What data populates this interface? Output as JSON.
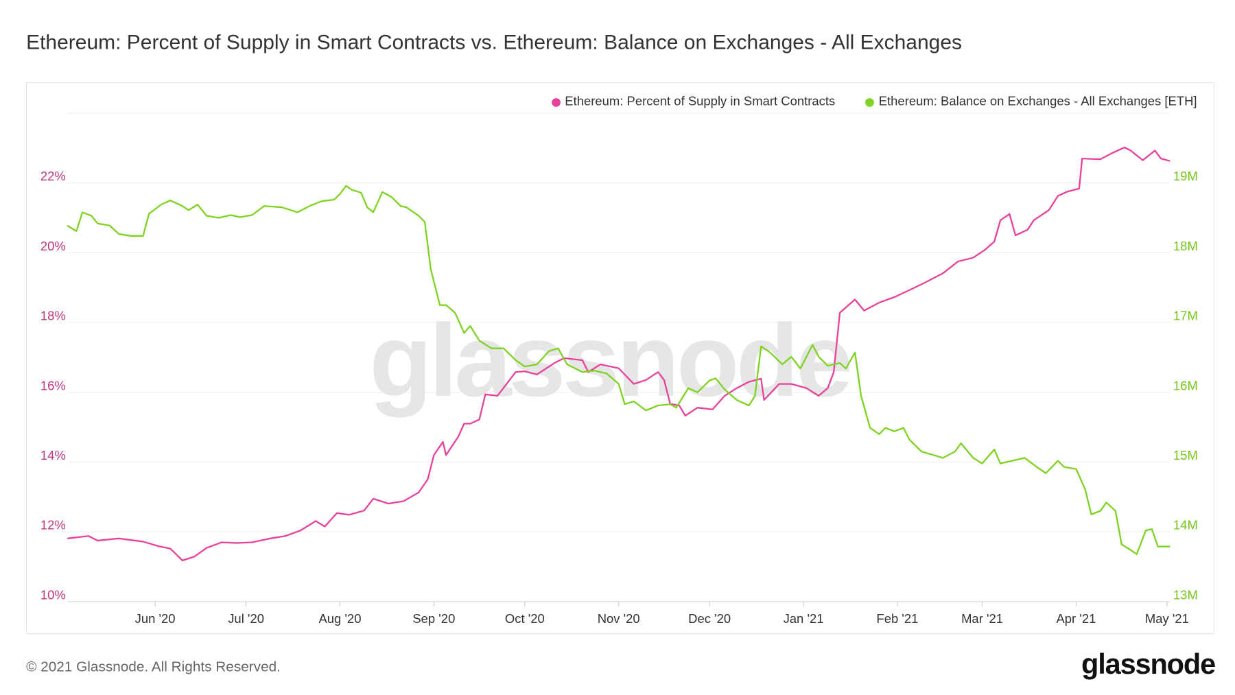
{
  "colors": {
    "pink": "#e8419b",
    "green": "#7ed321",
    "left_axis": "#c2347f",
    "right_axis": "#76c51c"
  },
  "chart_data": {
    "type": "line",
    "title": "Ethereum: Percent of Supply in Smart Contracts vs. Ethereum: Balance on Exchanges - All Exchanges",
    "x_unit": "days since 2020-05-03",
    "x_range": [
      0,
      364
    ],
    "x_ticks": [
      {
        "day": 29,
        "label": "Jun '20"
      },
      {
        "day": 59,
        "label": "Jul '20"
      },
      {
        "day": 90,
        "label": "Aug '20"
      },
      {
        "day": 121,
        "label": "Sep '20"
      },
      {
        "day": 151,
        "label": "Oct '20"
      },
      {
        "day": 182,
        "label": "Nov '20"
      },
      {
        "day": 212,
        "label": "Dec '20"
      },
      {
        "day": 243,
        "label": "Jan '21"
      },
      {
        "day": 274,
        "label": "Feb '21"
      },
      {
        "day": 302,
        "label": "Mar '21"
      },
      {
        "day": 333,
        "label": "Apr '21"
      },
      {
        "day": 363,
        "label": "May '21"
      }
    ],
    "y_left": {
      "range": [
        10,
        24
      ],
      "ticks": [
        {
          "v": 10,
          "label": "10%"
        },
        {
          "v": 12,
          "label": "12%"
        },
        {
          "v": 14,
          "label": "14%"
        },
        {
          "v": 16,
          "label": "16%"
        },
        {
          "v": 18,
          "label": "18%"
        },
        {
          "v": 20,
          "label": "20%"
        },
        {
          "v": 22,
          "label": "22%"
        }
      ]
    },
    "y_right": {
      "range": [
        13,
        20
      ],
      "ticks": [
        {
          "v": 13,
          "label": "13M"
        },
        {
          "v": 14,
          "label": "14M"
        },
        {
          "v": 15,
          "label": "15M"
        },
        {
          "v": 16,
          "label": "16M"
        },
        {
          "v": 17,
          "label": "17M"
        },
        {
          "v": 18,
          "label": "18M"
        },
        {
          "v": 19,
          "label": "19M"
        }
      ]
    },
    "grid": true,
    "legend_position": "top-right",
    "watermark": "glassnode",
    "series": [
      {
        "name": "Ethereum: Percent of Supply in Smart Contracts",
        "axis": "left",
        "unit": "%",
        "color": "#e8419b",
        "x": [
          0,
          7,
          10,
          17,
          25,
          30,
          34,
          38,
          42,
          46,
          51,
          56,
          61,
          67,
          72,
          77,
          82,
          85,
          89,
          93,
          98,
          101,
          106,
          111,
          116,
          119,
          121,
          124,
          125,
          129,
          131,
          133,
          136,
          138,
          142,
          148,
          151,
          155,
          161,
          164,
          170,
          172,
          176,
          182,
          187,
          191,
          195,
          197,
          199,
          202,
          204,
          208,
          213,
          217,
          221,
          225,
          229,
          230,
          235,
          239,
          244,
          248,
          251,
          253,
          255,
          260,
          263,
          268,
          273,
          278,
          283,
          289,
          294,
          299,
          303,
          306,
          308,
          311,
          313,
          317,
          319,
          324,
          327,
          330,
          334,
          335,
          341,
          345,
          349,
          351,
          355,
          359,
          361,
          364
        ],
        "values": [
          11.81,
          11.88,
          11.75,
          11.81,
          11.72,
          11.59,
          11.52,
          11.18,
          11.29,
          11.54,
          11.7,
          11.68,
          11.7,
          11.81,
          11.88,
          12.04,
          12.31,
          12.15,
          12.54,
          12.49,
          12.61,
          12.95,
          12.81,
          12.88,
          13.13,
          13.51,
          14.2,
          14.58,
          14.2,
          14.72,
          15.1,
          15.1,
          15.22,
          15.94,
          15.9,
          16.58,
          16.6,
          16.51,
          16.85,
          16.98,
          16.92,
          16.58,
          16.8,
          16.69,
          16.24,
          16.35,
          16.58,
          16.35,
          15.67,
          15.62,
          15.33,
          15.56,
          15.51,
          15.9,
          16.12,
          16.3,
          16.39,
          15.78,
          16.24,
          16.24,
          16.12,
          15.9,
          16.12,
          16.58,
          18.28,
          18.66,
          18.34,
          18.57,
          18.73,
          18.93,
          19.14,
          19.41,
          19.75,
          19.86,
          20.09,
          20.32,
          20.93,
          21.11,
          20.5,
          20.66,
          20.93,
          21.22,
          21.63,
          21.75,
          21.84,
          22.7,
          22.68,
          22.86,
          23.02,
          22.93,
          22.65,
          22.93,
          22.7,
          22.63
        ]
      },
      {
        "name": "Ethereum: Balance on Exchanges - All Exchanges [ETH]",
        "axis": "right",
        "unit": "M ETH",
        "color": "#7ed321",
        "x": [
          0,
          3,
          5,
          8,
          10,
          14,
          17,
          21,
          25,
          27,
          31,
          34,
          38,
          40,
          43,
          46,
          50,
          54,
          57,
          61,
          65,
          71,
          76,
          80,
          84,
          88,
          90,
          92,
          94,
          97,
          99,
          101,
          104,
          107,
          110,
          112,
          116,
          118,
          120,
          123,
          125,
          128,
          131,
          133,
          136,
          140,
          144,
          148,
          151,
          155,
          159,
          162,
          165,
          170,
          174,
          178,
          182,
          184,
          187,
          191,
          195,
          199,
          201,
          205,
          208,
          212,
          214,
          217,
          221,
          225,
          227,
          229,
          232,
          236,
          239,
          242,
          246,
          248,
          251,
          255,
          257,
          260,
          262,
          265,
          268,
          270,
          273,
          276,
          278,
          282,
          286,
          289,
          293,
          295,
          299,
          302,
          306,
          308,
          312,
          316,
          320,
          323,
          327,
          329,
          333,
          336,
          338,
          341,
          343,
          346,
          348,
          351,
          353,
          356,
          358,
          360,
          362,
          364
        ],
        "values": [
          18.39,
          18.31,
          18.58,
          18.53,
          18.42,
          18.39,
          18.27,
          18.24,
          18.24,
          18.56,
          18.69,
          18.75,
          18.67,
          18.61,
          18.69,
          18.53,
          18.5,
          18.54,
          18.51,
          18.54,
          18.67,
          18.65,
          18.58,
          18.67,
          18.74,
          18.76,
          18.84,
          18.96,
          18.9,
          18.86,
          18.65,
          18.58,
          18.87,
          18.8,
          18.67,
          18.65,
          18.53,
          18.44,
          17.76,
          17.25,
          17.25,
          17.14,
          16.85,
          16.95,
          16.74,
          16.63,
          16.63,
          16.46,
          16.37,
          16.4,
          16.59,
          16.63,
          16.4,
          16.29,
          16.31,
          16.27,
          16.12,
          15.83,
          15.87,
          15.74,
          15.81,
          15.83,
          15.78,
          16.06,
          16.0,
          16.17,
          16.2,
          16.04,
          15.89,
          15.81,
          15.95,
          16.66,
          16.57,
          16.4,
          16.51,
          16.34,
          16.68,
          16.51,
          16.38,
          16.42,
          16.34,
          16.57,
          15.95,
          15.49,
          15.4,
          15.49,
          15.44,
          15.49,
          15.32,
          15.15,
          15.1,
          15.06,
          15.15,
          15.27,
          15.06,
          14.98,
          15.18,
          14.98,
          15.02,
          15.06,
          14.93,
          14.84,
          15.02,
          14.93,
          14.9,
          14.61,
          14.25,
          14.3,
          14.42,
          14.3,
          13.82,
          13.74,
          13.68,
          14.02,
          14.04,
          13.79,
          13.79,
          13.79
        ]
      }
    ]
  },
  "footer": {
    "copyright": "© 2021 Glassnode. All Rights Reserved.",
    "logo": "glassnode"
  }
}
